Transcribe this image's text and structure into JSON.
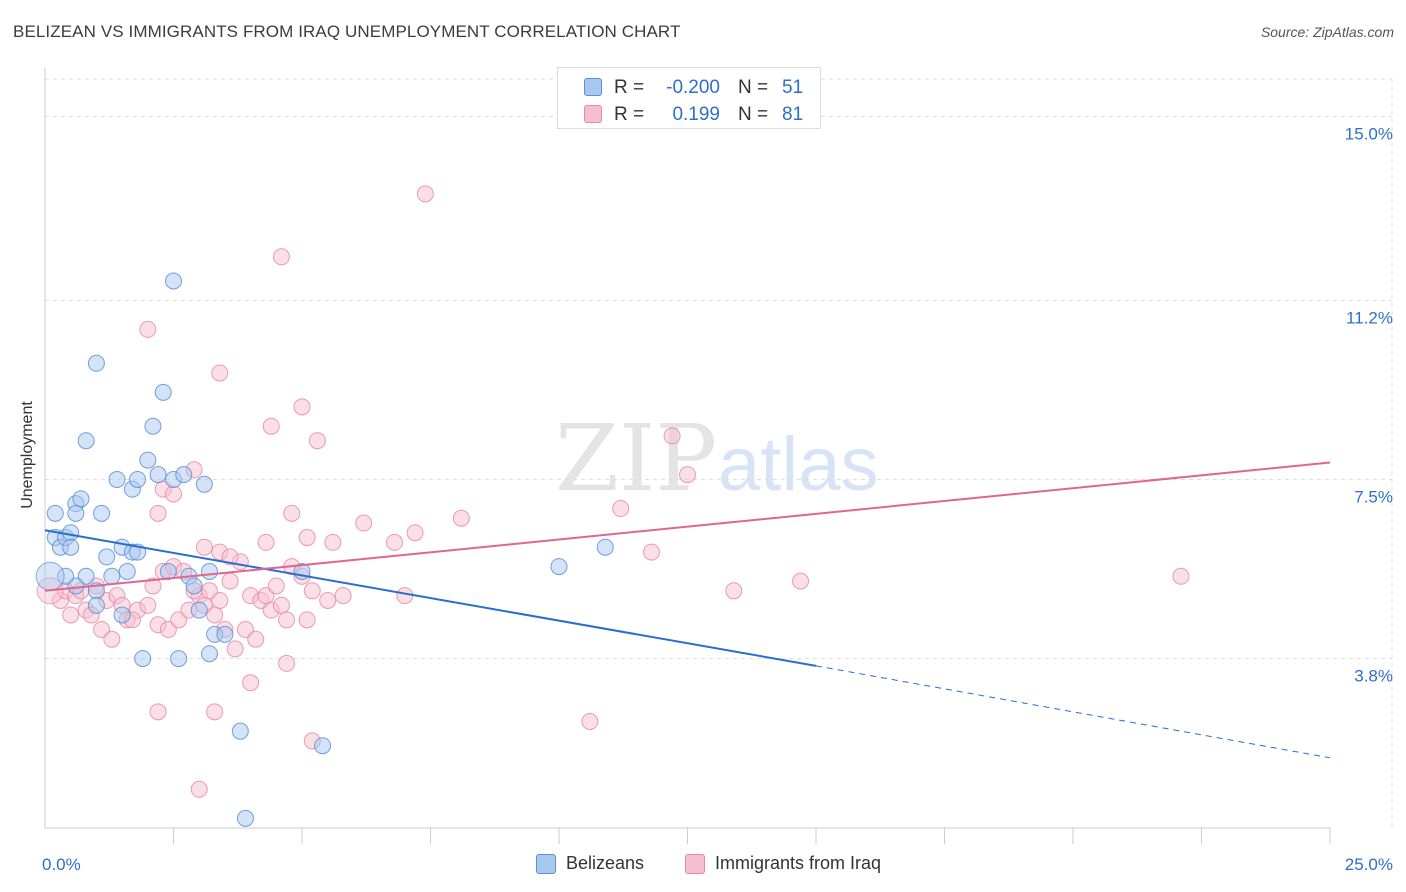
{
  "title": "BELIZEAN VS IMMIGRANTS FROM IRAQ UNEMPLOYMENT CORRELATION CHART",
  "source": "Source: ZipAtlas.com",
  "watermark": {
    "zip": "ZIP",
    "atlas": "atlas"
  },
  "colors": {
    "blue_fill": "#a9c8ef",
    "blue_stroke": "#5b8fd6",
    "blue_line": "#2a6dd0",
    "pink_fill": "#f6bfd0",
    "pink_stroke": "#e889a8",
    "pink_line": "#e06690",
    "tick_text": "#2f6fc9",
    "grid": "#dddddd"
  },
  "legend": {
    "rows": [
      {
        "r_label": "R =",
        "r_value": "-0.200",
        "n_label": "N =",
        "n_value": "51"
      },
      {
        "r_label": "R =",
        "r_value": "0.199",
        "n_label": "N =",
        "n_value": "81"
      }
    ]
  },
  "bottom_legend": {
    "series1": "Belizeans",
    "series2": "Immigrants from Iraq"
  },
  "chart_data": {
    "type": "scatter",
    "title": "BELIZEAN VS IMMIGRANTS FROM IRAQ UNEMPLOYMENT CORRELATION CHART",
    "xlabel": "",
    "ylabel": "Unemployment",
    "xlim": [
      0,
      25
    ],
    "ylim": [
      0.3,
      16.0
    ],
    "x_tick_labels": [
      {
        "value": 0,
        "label": "0.0%"
      },
      {
        "value": 25,
        "label": "25.0%"
      }
    ],
    "y_ticks": [
      {
        "value": 3.8,
        "label": "3.8%"
      },
      {
        "value": 7.5,
        "label": "7.5%"
      },
      {
        "value": 11.2,
        "label": "11.2%"
      },
      {
        "value": 15.0,
        "label": "15.0%"
      }
    ],
    "x_minor_ticks": [
      2.5,
      5,
      7.5,
      10,
      12.5,
      15,
      17.5,
      20,
      22.5,
      25
    ],
    "series": [
      {
        "name": "Belizeans",
        "r": -0.2,
        "n": 51,
        "trend": {
          "x0": 0,
          "y0": 6.45,
          "x1": 15,
          "y1": 3.65,
          "dash_to_x": 25,
          "dash_to_y": 1.75
        },
        "points": [
          [
            0.2,
            6.3
          ],
          [
            0.3,
            6.1
          ],
          [
            0.4,
            6.3
          ],
          [
            0.5,
            6.4
          ],
          [
            0.6,
            7.0
          ],
          [
            0.2,
            6.8
          ],
          [
            0.5,
            6.1
          ],
          [
            0.6,
            6.8
          ],
          [
            0.8,
            5.5
          ],
          [
            1.0,
            5.2
          ],
          [
            1.2,
            5.9
          ],
          [
            1.5,
            6.1
          ],
          [
            1.7,
            6.0
          ],
          [
            1.8,
            6.0
          ],
          [
            1.3,
            5.5
          ],
          [
            1.6,
            5.6
          ],
          [
            0.7,
            7.1
          ],
          [
            1.1,
            6.8
          ],
          [
            1.4,
            7.5
          ],
          [
            1.7,
            7.3
          ],
          [
            1.8,
            7.5
          ],
          [
            2.0,
            7.9
          ],
          [
            2.2,
            7.6
          ],
          [
            2.5,
            7.5
          ],
          [
            2.1,
            8.6
          ],
          [
            2.3,
            9.3
          ],
          [
            2.4,
            5.6
          ],
          [
            2.8,
            5.5
          ],
          [
            2.9,
            5.3
          ],
          [
            3.1,
            7.4
          ],
          [
            3.2,
            5.6
          ],
          [
            3.0,
            4.8
          ],
          [
            3.3,
            4.3
          ],
          [
            3.5,
            4.3
          ],
          [
            3.2,
            3.9
          ],
          [
            2.6,
            3.8
          ],
          [
            1.9,
            3.8
          ],
          [
            3.8,
            2.3
          ],
          [
            5.0,
            5.6
          ],
          [
            5.4,
            2.0
          ],
          [
            3.9,
            0.5
          ],
          [
            2.5,
            11.6
          ],
          [
            1.0,
            9.9
          ],
          [
            0.8,
            8.3
          ],
          [
            1.5,
            4.7
          ],
          [
            1.0,
            4.9
          ],
          [
            0.6,
            5.3
          ],
          [
            10.0,
            5.7
          ],
          [
            10.9,
            6.1
          ],
          [
            0.4,
            5.5
          ],
          [
            2.7,
            7.6
          ]
        ]
      },
      {
        "name": "Immigrants from Iraq",
        "r": 0.199,
        "n": 81,
        "trend": {
          "x0": 0,
          "y0": 5.2,
          "x1": 25,
          "y1": 7.85
        },
        "points": [
          [
            0.3,
            5.0
          ],
          [
            0.4,
            5.2
          ],
          [
            0.6,
            5.1
          ],
          [
            0.8,
            4.8
          ],
          [
            0.9,
            4.7
          ],
          [
            1.0,
            5.3
          ],
          [
            1.2,
            5.0
          ],
          [
            1.4,
            5.1
          ],
          [
            1.5,
            4.9
          ],
          [
            1.6,
            4.6
          ],
          [
            1.8,
            4.8
          ],
          [
            2.0,
            4.9
          ],
          [
            2.2,
            4.5
          ],
          [
            2.4,
            4.4
          ],
          [
            2.6,
            4.6
          ],
          [
            2.8,
            4.8
          ],
          [
            3.0,
            5.1
          ],
          [
            3.2,
            5.2
          ],
          [
            3.4,
            5.0
          ],
          [
            3.6,
            5.4
          ],
          [
            3.8,
            5.8
          ],
          [
            4.0,
            5.1
          ],
          [
            4.2,
            5.0
          ],
          [
            4.4,
            4.8
          ],
          [
            4.6,
            4.9
          ],
          [
            4.8,
            5.7
          ],
          [
            5.0,
            5.5
          ],
          [
            0.5,
            4.7
          ],
          [
            0.7,
            5.2
          ],
          [
            1.1,
            4.4
          ],
          [
            1.3,
            4.2
          ],
          [
            1.7,
            4.6
          ],
          [
            2.1,
            5.3
          ],
          [
            2.3,
            5.6
          ],
          [
            2.5,
            5.7
          ],
          [
            2.7,
            5.6
          ],
          [
            2.9,
            5.2
          ],
          [
            3.1,
            4.9
          ],
          [
            3.3,
            4.7
          ],
          [
            3.5,
            4.4
          ],
          [
            3.7,
            4.0
          ],
          [
            3.9,
            4.4
          ],
          [
            4.1,
            4.2
          ],
          [
            4.3,
            5.1
          ],
          [
            4.5,
            5.3
          ],
          [
            4.7,
            4.6
          ],
          [
            5.2,
            5.2
          ],
          [
            5.5,
            5.0
          ],
          [
            5.8,
            5.1
          ],
          [
            2.2,
            6.8
          ],
          [
            2.3,
            7.3
          ],
          [
            2.5,
            7.2
          ],
          [
            2.9,
            7.7
          ],
          [
            3.1,
            6.1
          ],
          [
            3.4,
            6.0
          ],
          [
            3.6,
            5.9
          ],
          [
            4.3,
            6.2
          ],
          [
            4.8,
            6.8
          ],
          [
            5.1,
            6.3
          ],
          [
            5.6,
            6.2
          ],
          [
            6.2,
            6.6
          ],
          [
            6.8,
            6.2
          ],
          [
            7.2,
            6.4
          ],
          [
            5.0,
            9.0
          ],
          [
            5.3,
            8.3
          ],
          [
            4.4,
            8.6
          ],
          [
            3.4,
            9.7
          ],
          [
            4.6,
            12.1
          ],
          [
            7.4,
            13.4
          ],
          [
            2.0,
            10.6
          ],
          [
            5.1,
            4.6
          ],
          [
            4.0,
            3.3
          ],
          [
            4.7,
            3.7
          ],
          [
            5.2,
            2.1
          ],
          [
            3.3,
            2.7
          ],
          [
            2.2,
            2.7
          ],
          [
            3.0,
            1.1
          ],
          [
            10.6,
            2.5
          ],
          [
            7.0,
            5.1
          ],
          [
            8.1,
            6.7
          ],
          [
            11.2,
            6.9
          ]
        ]
      }
    ],
    "extra_points_pink": [
      [
        12.2,
        8.4
      ],
      [
        12.5,
        7.6
      ],
      [
        11.8,
        6.0
      ],
      [
        13.4,
        5.2
      ],
      [
        14.7,
        5.4
      ],
      [
        22.1,
        5.5
      ]
    ]
  }
}
